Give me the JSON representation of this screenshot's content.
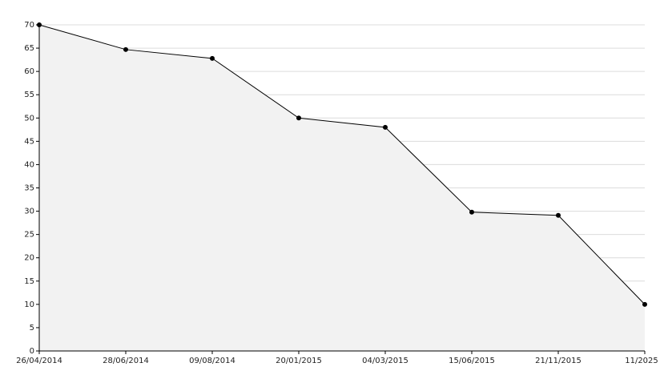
{
  "chart_data": {
    "type": "area",
    "categories": [
      "26/04/2014",
      "28/06/2014",
      "09/08/2014",
      "20/01/2015",
      "04/03/2015",
      "15/06/2015",
      "21/11/2015",
      "11/2025"
    ],
    "values": [
      70,
      64.7,
      62.8,
      50,
      48,
      29.8,
      29.1,
      10
    ],
    "color": "#000000",
    "fill": "#f2f2f2",
    "ylim": [
      0,
      70
    ],
    "yticks": [
      0,
      5,
      10,
      15,
      20,
      25,
      30,
      35,
      40,
      45,
      50,
      55,
      60,
      65,
      70
    ],
    "grid": true
  }
}
